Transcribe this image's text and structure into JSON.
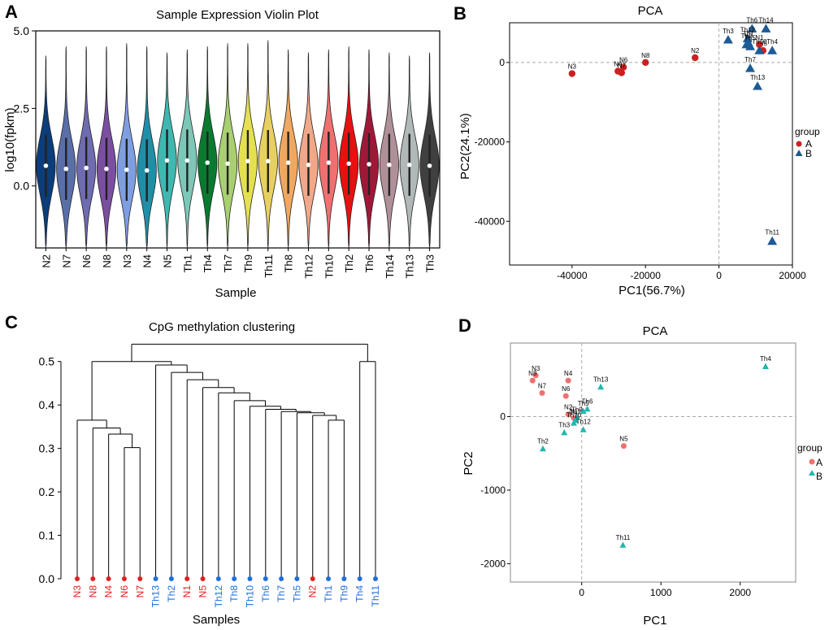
{
  "panels": {
    "A": {
      "letter": "A",
      "title": "Sample Expression Violin Plot",
      "ylabel": "log10(fpkm)",
      "xlabel": "Sample",
      "yticks": [
        "5.0",
        "2.5",
        "0.0"
      ]
    },
    "B": {
      "letter": "B",
      "title": "PCA",
      "xlabel": "PC1(56.7%)",
      "ylabel": "PC2(24.1%)",
      "xticks": [
        "-40000",
        "-20000",
        "0",
        "20000"
      ],
      "yticks": [
        "0",
        "-20000",
        "-40000"
      ],
      "legend": {
        "title": "group",
        "items": [
          "A",
          "B"
        ]
      }
    },
    "C": {
      "letter": "C",
      "title": "CpG methylation clustering",
      "xlabel": "Samples",
      "yticks": [
        "0.5",
        "0.4",
        "0.3",
        "0.2",
        "0.1",
        "0.0"
      ]
    },
    "D": {
      "letter": "D",
      "title": "PCA",
      "xlabel": "PC1",
      "ylabel": "PC2",
      "xticks": [
        "0",
        "1000",
        "2000"
      ],
      "yticks": [
        "0",
        "-1000",
        "-2000"
      ],
      "legend": {
        "title": "group",
        "items": [
          "A",
          "B"
        ]
      }
    }
  },
  "chart_data": [
    {
      "panel": "A",
      "type": "violin",
      "title": "Sample Expression Violin Plot",
      "xlabel": "Sample",
      "ylabel": "log10(fpkm)",
      "ylim": [
        -2.0,
        5.0
      ],
      "categories": [
        "N2",
        "N7",
        "N6",
        "N8",
        "N3",
        "N4",
        "N5",
        "Th1",
        "Th4",
        "Th7",
        "Th9",
        "Th11",
        "Th8",
        "Th12",
        "Th10",
        "Th2",
        "Th6",
        "Th14",
        "Th13",
        "Th3"
      ],
      "medians": [
        0.65,
        0.55,
        0.58,
        0.55,
        0.52,
        0.5,
        0.82,
        0.82,
        0.75,
        0.72,
        0.8,
        0.8,
        0.75,
        0.68,
        0.75,
        0.72,
        0.7,
        0.68,
        0.68,
        0.65
      ],
      "max": [
        4.2,
        4.5,
        4.5,
        4.5,
        4.6,
        4.5,
        4.3,
        4.4,
        4.5,
        4.6,
        4.6,
        4.7,
        4.4,
        4.3,
        4.4,
        4.5,
        4.4,
        4.3,
        4.2,
        4.3
      ],
      "min": [
        -2.0,
        -2.0,
        -2.0,
        -2.0,
        -2.0,
        -2.0,
        -2.0,
        -2.0,
        -2.0,
        -2.0,
        -2.0,
        -2.0,
        -2.0,
        -2.0,
        -2.0,
        -2.0,
        -2.0,
        -2.0,
        -2.0,
        -2.0
      ],
      "colors": [
        "#0b3d7a",
        "#5a6fa8",
        "#6e6bb0",
        "#7a4fa0",
        "#7e9ee0",
        "#1f8fa8",
        "#3fb8b0",
        "#7cc8b8",
        "#0a7a30",
        "#a8d070",
        "#e4e050",
        "#e8d060",
        "#f0a860",
        "#f0a888",
        "#f07070",
        "#e81010",
        "#a01838",
        "#b09098",
        "#b0b8b8",
        "#404040"
      ]
    },
    {
      "panel": "B",
      "type": "scatter",
      "title": "PCA",
      "xlabel": "PC1(56.7%)",
      "ylabel": "PC2(24.1%)",
      "xlim": [
        -57000,
        20000
      ],
      "ylim": [
        -51000,
        10000
      ],
      "series": [
        {
          "name": "A",
          "points": [
            {
              "label": "N3",
              "x": -40000,
              "y": -2800
            },
            {
              "label": "N4",
              "x": -27500,
              "y": -2200
            },
            {
              "label": "N6",
              "x": -26000,
              "y": -1200
            },
            {
              "label": "N7",
              "x": -26500,
              "y": -2600
            },
            {
              "label": "N8",
              "x": -20000,
              "y": 0
            },
            {
              "label": "N2",
              "x": -6500,
              "y": 1200
            },
            {
              "label": "N5",
              "x": 12000,
              "y": 3000
            },
            {
              "label": "N1",
              "x": 11000,
              "y": 4500
            }
          ]
        },
        {
          "name": "B",
          "points": [
            {
              "label": "Th3",
              "x": 2500,
              "y": 5700
            },
            {
              "label": "Th6",
              "x": 9000,
              "y": 8500
            },
            {
              "label": "Th14",
              "x": 12800,
              "y": 8500
            },
            {
              "label": "Th12",
              "x": 7800,
              "y": 6000
            },
            {
              "label": "Th2",
              "x": 7500,
              "y": 4500
            },
            {
              "label": "Th1",
              "x": 8000,
              "y": 5000
            },
            {
              "label": "Th5",
              "x": 8500,
              "y": 4000
            },
            {
              "label": "Th10",
              "x": 11000,
              "y": 3000
            },
            {
              "label": "Th4",
              "x": 14500,
              "y": 3000
            },
            {
              "label": "Th7",
              "x": 8500,
              "y": -1500
            },
            {
              "label": "Th13",
              "x": 10500,
              "y": -6000
            },
            {
              "label": "Th11",
              "x": 14500,
              "y": -45000
            }
          ]
        }
      ]
    },
    {
      "panel": "C",
      "type": "dendrogram",
      "title": "CpG methylation clustering",
      "xlabel": "Samples",
      "ylim": [
        0,
        0.55
      ],
      "leaves": [
        {
          "label": "N3",
          "group": "A"
        },
        {
          "label": "N8",
          "group": "A"
        },
        {
          "label": "N4",
          "group": "A"
        },
        {
          "label": "N6",
          "group": "A"
        },
        {
          "label": "N7",
          "group": "A"
        },
        {
          "label": "Th13",
          "group": "B"
        },
        {
          "label": "Th2",
          "group": "B"
        },
        {
          "label": "N1",
          "group": "A"
        },
        {
          "label": "N5",
          "group": "A"
        },
        {
          "label": "Th12",
          "group": "B"
        },
        {
          "label": "Th8",
          "group": "B"
        },
        {
          "label": "Th10",
          "group": "B"
        },
        {
          "label": "Th6",
          "group": "B"
        },
        {
          "label": "Th7",
          "group": "B"
        },
        {
          "label": "Th5",
          "group": "B"
        },
        {
          "label": "N2",
          "group": "A"
        },
        {
          "label": "Th1",
          "group": "B"
        },
        {
          "label": "Th9",
          "group": "B"
        },
        {
          "label": "Th4",
          "group": "B"
        },
        {
          "label": "Th11",
          "group": "B"
        }
      ],
      "merges": [
        {
          "a": "L3",
          "b": "L4",
          "h": 0.302
        },
        {
          "a": "L2",
          "b": "M0",
          "h": 0.333
        },
        {
          "a": "L1",
          "b": "M1",
          "h": 0.347
        },
        {
          "a": "L0",
          "b": "M2",
          "h": 0.365
        },
        {
          "a": "L16",
          "b": "L17",
          "h": 0.365
        },
        {
          "a": "L15",
          "b": "M4",
          "h": 0.376
        },
        {
          "a": "L14",
          "b": "M5",
          "h": 0.382
        },
        {
          "a": "L13",
          "b": "M6",
          "h": 0.385
        },
        {
          "a": "L12",
          "b": "M7",
          "h": 0.39
        },
        {
          "a": "L11",
          "b": "M8",
          "h": 0.397
        },
        {
          "a": "L10",
          "b": "M9",
          "h": 0.41
        },
        {
          "a": "L9",
          "b": "M10",
          "h": 0.428
        },
        {
          "a": "L8",
          "b": "M11",
          "h": 0.44
        },
        {
          "a": "L7",
          "b": "M12",
          "h": 0.458
        },
        {
          "a": "L6",
          "b": "M13",
          "h": 0.475
        },
        {
          "a": "L5",
          "b": "M14",
          "h": 0.492
        },
        {
          "a": "M3",
          "b": "M15",
          "h": 0.5
        },
        {
          "a": "L18",
          "b": "L19",
          "h": 0.5
        },
        {
          "a": "M16",
          "b": "M17",
          "h": 0.54
        }
      ],
      "colors": {
        "A": "#e02020",
        "B": "#1f6fd8"
      }
    },
    {
      "panel": "D",
      "type": "scatter",
      "title": "PCA",
      "xlabel": "PC1",
      "ylabel": "PC2",
      "xlim": [
        -900,
        2700
      ],
      "ylim": [
        -2250,
        1000
      ],
      "series": [
        {
          "name": "A",
          "points": [
            {
              "label": "N3",
              "x": -580,
              "y": 560
            },
            {
              "label": "N8",
              "x": -620,
              "y": 490
            },
            {
              "label": "N4",
              "x": -170,
              "y": 490
            },
            {
              "label": "N7",
              "x": -500,
              "y": 320
            },
            {
              "label": "N6",
              "x": -200,
              "y": 280
            },
            {
              "label": "N2",
              "x": -170,
              "y": 30
            },
            {
              "label": "N1",
              "x": -100,
              "y": -20
            },
            {
              "label": "N5",
              "x": 530,
              "y": -400
            }
          ]
        },
        {
          "name": "B",
          "points": [
            {
              "label": "Th4",
              "x": 2320,
              "y": 680
            },
            {
              "label": "Th13",
              "x": 240,
              "y": 400
            },
            {
              "label": "Th6",
              "x": 70,
              "y": 100
            },
            {
              "label": "Th5",
              "x": 20,
              "y": 70
            },
            {
              "label": "Th9",
              "x": -60,
              "y": -10
            },
            {
              "label": "Th7",
              "x": -80,
              "y": -50
            },
            {
              "label": "Th10",
              "x": -100,
              "y": -90
            },
            {
              "label": "Th3",
              "x": -220,
              "y": -220
            },
            {
              "label": "Th12",
              "x": 20,
              "y": -180
            },
            {
              "label": "Th2",
              "x": -490,
              "y": -440
            },
            {
              "label": "Th11",
              "x": 520,
              "y": -1750
            }
          ]
        }
      ]
    }
  ]
}
